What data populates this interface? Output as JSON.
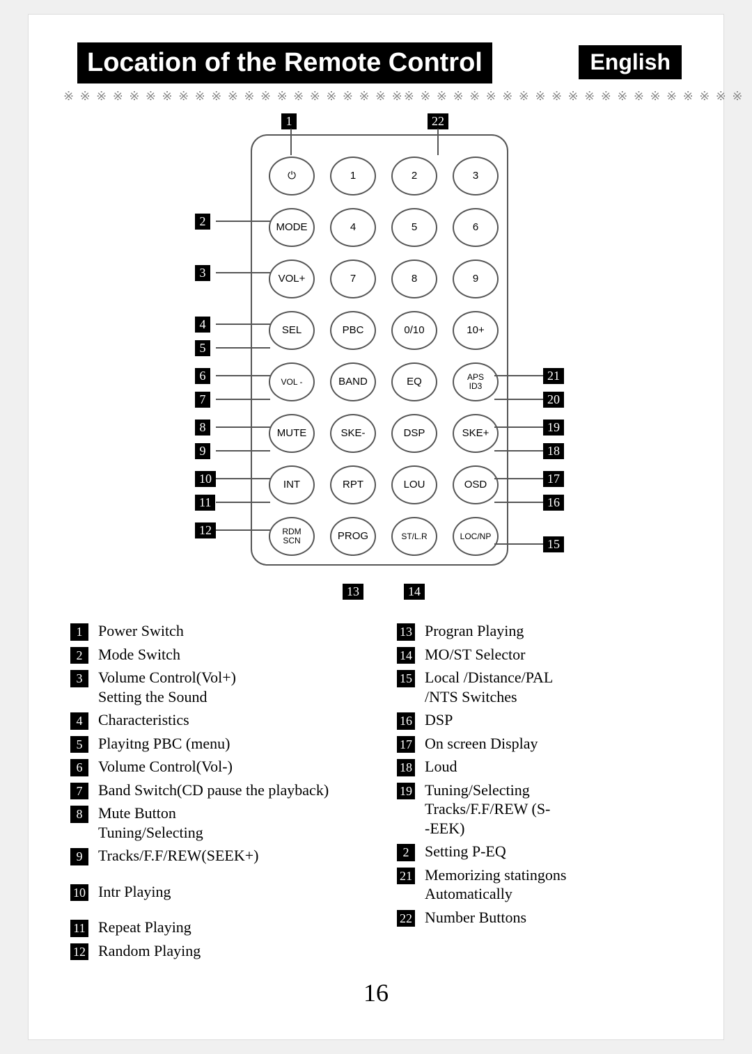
{
  "header": {
    "title": "Location of the Remote Control",
    "language": "English",
    "separator": "※ ※ ※ ※ ※ ※ ※ ※ ※ ※ ※ ※ ※ ※ ※ ※ ※ ※ ※ ※ ※"
  },
  "page_number": "16",
  "remote": {
    "rows": [
      [
        "⏻",
        "1",
        "2",
        "3"
      ],
      [
        "MODE",
        "4",
        "5",
        "6"
      ],
      [
        "VOL+",
        "7",
        "8",
        "9"
      ],
      [
        "SEL",
        "PBC",
        "0/10",
        "10+"
      ],
      [
        "VOL -",
        "BAND",
        "EQ",
        "APS\nID3"
      ],
      [
        "MUTE",
        "SKE-",
        "DSP",
        "SKE+"
      ],
      [
        "INT",
        "RPT",
        "LOU",
        "OSD"
      ],
      [
        "RDM\nSCN",
        "PROG",
        "ST/L.R",
        "LOC/NP"
      ]
    ]
  },
  "callouts_left": [
    {
      "n": "2",
      "row": 1
    },
    {
      "n": "3",
      "row": 2
    },
    {
      "n": "4",
      "row": 3
    },
    {
      "n": "5",
      "row": 3,
      "off": 34
    },
    {
      "n": "6",
      "row": 4
    },
    {
      "n": "7",
      "row": 4,
      "off": 34
    },
    {
      "n": "8",
      "row": 5
    },
    {
      "n": "9",
      "row": 5,
      "off": 34
    },
    {
      "n": "10",
      "row": 6
    },
    {
      "n": "11",
      "row": 6,
      "off": 34
    },
    {
      "n": "12",
      "row": 7
    }
  ],
  "callouts_right": [
    {
      "n": "21",
      "row": 4
    },
    {
      "n": "20",
      "row": 4,
      "off": 34
    },
    {
      "n": "19",
      "row": 5
    },
    {
      "n": "18",
      "row": 5,
      "off": 34
    },
    {
      "n": "17",
      "row": 6
    },
    {
      "n": "16",
      "row": 6,
      "off": 34
    },
    {
      "n": "15",
      "row": 7,
      "off": 20
    }
  ],
  "callout_top": {
    "n": "1",
    "col": 0
  },
  "callout_top22": {
    "n": "22",
    "col": 2.5
  },
  "callout_bottom": [
    {
      "n": "13",
      "col": 1
    },
    {
      "n": "14",
      "col": 2
    }
  ],
  "legend_left": [
    {
      "n": "1",
      "t": "Power Switch"
    },
    {
      "n": "2",
      "t": "Mode  Switch"
    },
    {
      "n": "3",
      "t": "Volume Control(Vol+)\nSetting the Sound"
    },
    {
      "n": "4",
      "t": "Characteristics"
    },
    {
      "n": "5",
      "t": "Playitng PBC (menu)"
    },
    {
      "n": "6",
      "t": "Volume Control(Vol-)"
    },
    {
      "n": "7",
      "t": "Band Switch(CD pause the playback)"
    },
    {
      "n": "8",
      "t": "Mute Button\nTuning/Selecting"
    },
    {
      "n": "9",
      "t": "Tracks/F.F/REW(SEEK+)"
    },
    {
      "gap": true
    },
    {
      "n": "10",
      "t": "Intr Playing"
    },
    {
      "gap": true
    },
    {
      "n": "11",
      "t": "Repeat Playing"
    },
    {
      "n": "12",
      "t": "Random Playing"
    }
  ],
  "legend_right": [
    {
      "n": "13",
      "t": "Progran Playing"
    },
    {
      "n": "14",
      "t": "MO/ST Selector"
    },
    {
      "n": "15",
      "t": "Local /Distance/PAL\n/NTS Switches"
    },
    {
      "n": "16",
      "t": "DSP"
    },
    {
      "n": "17",
      "t": "On screen Display"
    },
    {
      "n": "18",
      "t": "Loud"
    },
    {
      "n": "19",
      "t": "Tuning/Selecting\nTracks/F.F/REW (S-\n-EEK)"
    },
    {
      "n": "2",
      "t": "Setting P-EQ",
      "note": "shown as 2 in source, means 20"
    },
    {
      "n": "21",
      "t": "Memorizing statingons\nAutomatically"
    },
    {
      "n": "22",
      "t": "Number Buttons"
    }
  ]
}
